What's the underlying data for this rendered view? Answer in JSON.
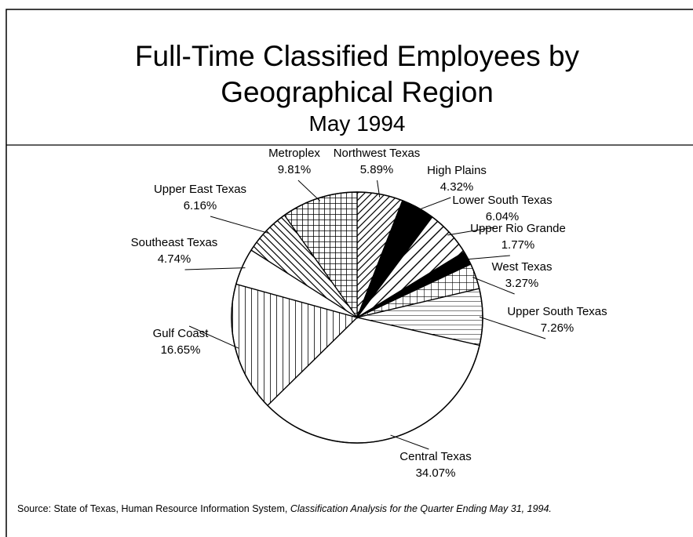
{
  "chart_data": {
    "type": "pie",
    "title": "Full-Time Classified Employees by",
    "title_line2": "Geographical Region",
    "subtitle": "May 1994",
    "categories": [
      "Northwest Texas",
      "High Plains",
      "Lower South Texas",
      "Upper Rio Grande",
      "West Texas",
      "Upper South Texas",
      "Central Texas",
      "Gulf Coast",
      "Southeast Texas",
      "Upper East Texas",
      "Metroplex"
    ],
    "values": [
      5.89,
      4.32,
      6.04,
      1.77,
      3.27,
      7.26,
      34.07,
      16.65,
      4.74,
      6.16,
      9.81
    ],
    "value_labels": [
      "5.89%",
      "4.32%",
      "6.04%",
      "1.77%",
      "3.27%",
      "7.26%",
      "34.07%",
      "16.65%",
      "4.74%",
      "6.16%",
      "9.81%"
    ],
    "patterns": [
      "diag-up",
      "black",
      "diag-up-wide",
      "black",
      "grid",
      "horizontal",
      "white",
      "vertical",
      "white",
      "diag-down",
      "crosshatch"
    ],
    "source": "Source: State of Texas, Human Resource Information System, ",
    "source_title": "Classification Analysis for the Quarter Ending May 31, 1994."
  }
}
